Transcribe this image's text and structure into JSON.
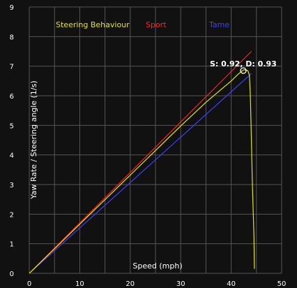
{
  "chart_data": {
    "type": "line",
    "xlabel": "Speed (mph)",
    "ylabel": "Yaw Rate / Steering angle (1/s)",
    "xlim": [
      0,
      50
    ],
    "ylim": [
      0,
      9
    ],
    "x_ticks": [
      "0",
      "10",
      "20",
      "30",
      "40",
      "50"
    ],
    "y_ticks": [
      "0",
      "1",
      "2",
      "3",
      "4",
      "5",
      "6",
      "7",
      "8",
      "9"
    ],
    "grid": true,
    "legend_position": "top",
    "background": "#111111",
    "grid_color": "#555555",
    "series": [
      {
        "name": "Steering Behaviour",
        "color": "#e6e600",
        "points": [
          [
            0,
            0
          ],
          [
            5,
            0.83
          ],
          [
            10,
            1.66
          ],
          [
            15,
            2.49
          ],
          [
            20,
            3.32
          ],
          [
            25,
            4.15
          ],
          [
            30,
            4.98
          ],
          [
            35,
            5.78
          ],
          [
            40,
            6.5
          ],
          [
            41.5,
            6.75
          ],
          [
            42.5,
            6.88
          ],
          [
            43.3,
            6.85
          ],
          [
            43.6,
            6.7
          ],
          [
            43.8,
            6.0
          ],
          [
            44.0,
            4.5
          ],
          [
            44.2,
            3.0
          ],
          [
            44.5,
            1.3
          ],
          [
            44.6,
            0.15
          ]
        ]
      },
      {
        "name": "Sport",
        "color": "#ff2020",
        "points": [
          [
            0,
            0
          ],
          [
            44,
            7.5
          ]
        ]
      },
      {
        "name": "Tame",
        "color": "#4040ff",
        "points": [
          [
            0,
            0
          ],
          [
            44,
            6.75
          ]
        ]
      }
    ],
    "annotations": [
      {
        "text": "S: 0.92, D: 0.93",
        "x": 42.4,
        "y": 6.85,
        "marker": "circle"
      }
    ]
  }
}
